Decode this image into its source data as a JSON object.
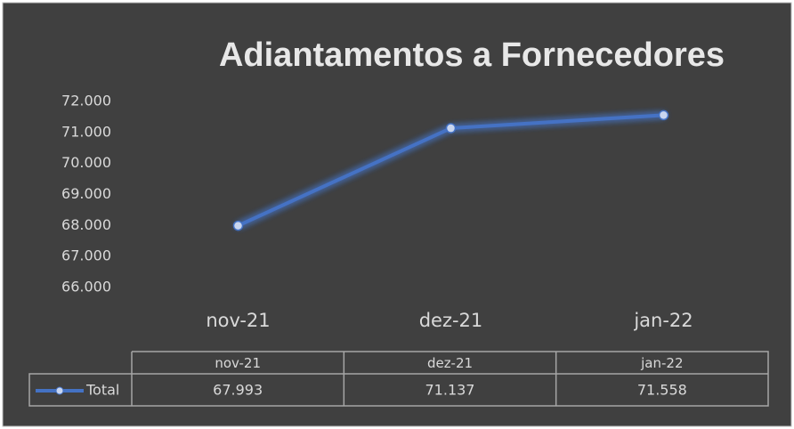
{
  "chart_data": {
    "type": "line",
    "title": "Adiantamentos a Fornecedores",
    "categories": [
      "nov-21",
      "dez-21",
      "jan-22"
    ],
    "series": [
      {
        "name": "Total",
        "color": "#4472c4",
        "values": [
          67993,
          71137,
          71558
        ],
        "value_labels": [
          "67.993",
          "71.137",
          "71.558"
        ]
      }
    ],
    "ylim": [
      66000,
      72000
    ],
    "yticks": [
      {
        "value": 66000,
        "label": "66.000"
      },
      {
        "value": 67000,
        "label": "67.000"
      },
      {
        "value": 68000,
        "label": "68.000"
      },
      {
        "value": 69000,
        "label": "69.000"
      },
      {
        "value": 70000,
        "label": "70.000"
      },
      {
        "value": 71000,
        "label": "71.000"
      },
      {
        "value": 72000,
        "label": "72.000"
      }
    ],
    "grid": false
  }
}
